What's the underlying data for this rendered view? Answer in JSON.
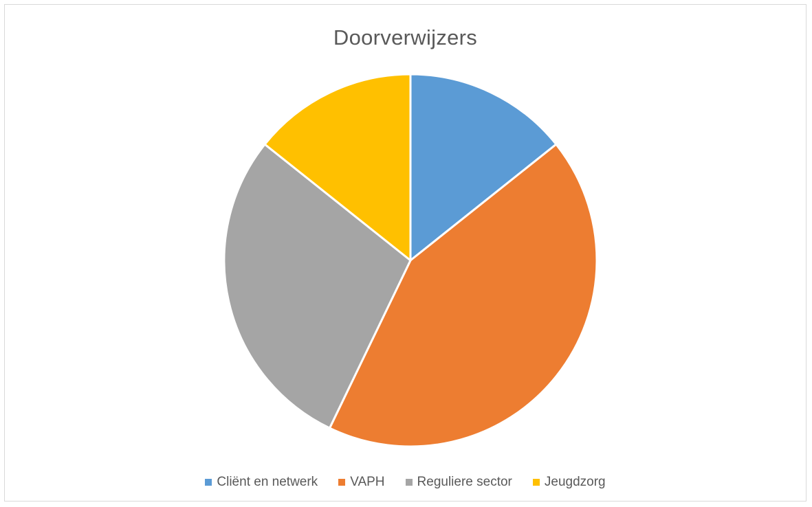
{
  "chart_data": {
    "type": "pie",
    "title": "Doorverwijzers",
    "categories": [
      "Cliënt en netwerk",
      "VAPH",
      "Reguliere sector",
      "Jeugdzorg"
    ],
    "values": [
      1,
      3,
      2,
      1
    ],
    "colors": [
      "#5b9bd5",
      "#ed7d31",
      "#a5a5a5",
      "#ffc000"
    ],
    "legend_position": "bottom",
    "slice_border_color": "#ffffff"
  }
}
